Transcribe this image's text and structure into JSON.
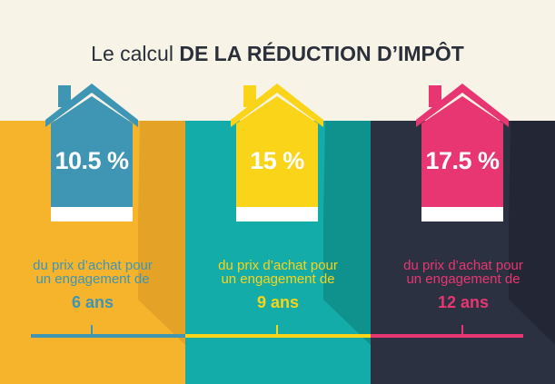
{
  "title": {
    "regular": "Le calcul",
    "bold": "DE LA RÉDUCTION D’IMPÔT"
  },
  "colors": {
    "background": "#f7f3e6",
    "panel1": "#f6b32c",
    "panel2": "#14aca8",
    "panel3": "#2c3141",
    "blue": "#3e95b4",
    "yellow": "#f9d418",
    "pink": "#e73672"
  },
  "items": [
    {
      "percent": "10.5 %",
      "line1": "du prix d’achat pour",
      "line2": "un engagement de",
      "years": "6 ans"
    },
    {
      "percent": "15 %",
      "line1": "du prix d’achat pour",
      "line2": "un engagement de",
      "years": "9 ans"
    },
    {
      "percent": "17.5 %",
      "line1": "du prix d’achat pour",
      "line2": "un engagement de",
      "years": "12 ans"
    }
  ]
}
